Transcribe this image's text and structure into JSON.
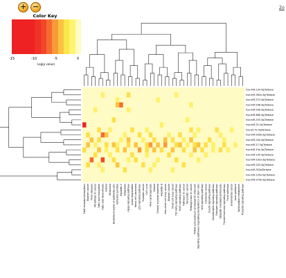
{
  "toolbar": {
    "zoom_in_icon": "zoom-in-icon",
    "zoom_out_icon": "zoom-out-icon",
    "zoom_in_glyph": "+",
    "zoom_out_glyph": "−"
  },
  "corner_link": "Zo",
  "color_key": {
    "title": "Color Key",
    "ticks": [
      "-15",
      "-10",
      "-5",
      "0"
    ],
    "axis_label": "Log(p value)",
    "colors": [
      "#ee2222",
      "#ee2222",
      "#ee2222",
      "#ee2222",
      "#f13026",
      "#f3452a",
      "#f66b30",
      "#f99a38",
      "#fbc440",
      "#fde64c",
      "#fff46e",
      "#fffbc4"
    ]
  },
  "heatmap": {
    "background": "#fffbc4",
    "rows": [
      "hsa-miR-134-5p|Tarbase",
      "hsa-miR-361b-3p|Tarbase",
      "hsa-miR-574-3p|Tarbase",
      "hsa-miR-296-5p|Tarbase",
      "hsa-miR-590-5p|Tarbase",
      "hsa-miR-660-5p|Tarbase",
      "hsa-miR-335-5p|Tarbase",
      "hsa-miR-32-5p|Tarbase",
      "hsa-let-7a-5p|Tarbase",
      "hsa-miR-200b-3p|Tarbase",
      "hsa-miR-20a-5p|Tarbase",
      "hsa-miR-17-5p|Tarbase",
      "hsa-miR-19a-3p|Tarbase",
      "hsa-miR-195-5p|Tarbase",
      "hsa-miR-101b-3p|Tarbase",
      "hsa-miR-203-5p|Tarbase",
      "hsa-miR-320a|Tarbase",
      "hsa-miR-135a-5p|Tarbase",
      "hsa-miR-374b-5p|Tarbase"
    ],
    "columns": [
      "ErbB receptor interactions",
      "Bladder cancer",
      "Prion diseases",
      "MicroRNAs in cancer",
      "Fatty acid elongation",
      "Fatty acid biosynthesis",
      "Glioma",
      "Melanoma",
      "Bacterial invasion of epithelial cells",
      "Adherens junction",
      "Hepatitis C",
      "Shigellosis",
      "Hippo signaling pathway",
      "Lysine degradation",
      "Renal cell carcinoma",
      "p53 signaling pathway",
      "Prostate cancer",
      "Cell cycle",
      "Viral carcinogenesis",
      "Glioma",
      "Chronic myeloid leukemia",
      "Hepatitis B",
      "Non-small cell lung cancer",
      "Bladder cancer",
      "Small cell lung cancer",
      "TGF-beta signaling pathway",
      "FoxO signaling pathway",
      "Pathways in cancer",
      "Pancreatic cancer",
      "Proteoglycans in cancer",
      "Protein processing in endoplasmic reticulum",
      "Signaling pathways regulating pluripotency of stem cells",
      "Wnt signaling pathway",
      "Colorectal cancer",
      "Insulin signaling pathway",
      "Neurotrophin signaling pathway",
      "Estrogen signaling pathway",
      "Ubiquitin mediated proteolysis",
      "Thyroid hormone signaling pathway",
      "Focal adhesion",
      "Endometrial cancer",
      "Axon guidance",
      "Sphingolipid metabolism",
      "Prolactin signaling pathway"
    ],
    "cells": [
      [
        1,
        5,
        1
      ],
      [
        1,
        12,
        2
      ],
      [
        1,
        25,
        1
      ],
      [
        2,
        9,
        1
      ],
      [
        2,
        20,
        1
      ],
      [
        3,
        9,
        3
      ],
      [
        3,
        10,
        5
      ],
      [
        3,
        29,
        1
      ],
      [
        4,
        3,
        1
      ],
      [
        4,
        12,
        1
      ],
      [
        6,
        8,
        2
      ],
      [
        6,
        28,
        1
      ],
      [
        7,
        0,
        7
      ],
      [
        7,
        21,
        1
      ],
      [
        8,
        4,
        2
      ],
      [
        8,
        7,
        1
      ],
      [
        8,
        13,
        2
      ],
      [
        8,
        17,
        1
      ],
      [
        8,
        29,
        2
      ],
      [
        8,
        31,
        1
      ],
      [
        8,
        36,
        2
      ],
      [
        8,
        40,
        1
      ],
      [
        9,
        1,
        2
      ],
      [
        9,
        5,
        5
      ],
      [
        9,
        6,
        3
      ],
      [
        9,
        11,
        1
      ],
      [
        9,
        15,
        2
      ],
      [
        9,
        18,
        2
      ],
      [
        9,
        23,
        1
      ],
      [
        9,
        26,
        2
      ],
      [
        9,
        30,
        1
      ],
      [
        9,
        37,
        1
      ],
      [
        10,
        2,
        3
      ],
      [
        10,
        4,
        2
      ],
      [
        10,
        10,
        1
      ],
      [
        10,
        12,
        3
      ],
      [
        10,
        16,
        1
      ],
      [
        10,
        19,
        2
      ],
      [
        10,
        22,
        3
      ],
      [
        10,
        24,
        2
      ],
      [
        10,
        27,
        1
      ],
      [
        10,
        29,
        3
      ],
      [
        10,
        34,
        2
      ],
      [
        10,
        38,
        1
      ],
      [
        11,
        1,
        3
      ],
      [
        11,
        3,
        1
      ],
      [
        11,
        6,
        2
      ],
      [
        11,
        8,
        3
      ],
      [
        11,
        9,
        1
      ],
      [
        11,
        12,
        2
      ],
      [
        11,
        14,
        3
      ],
      [
        11,
        17,
        2
      ],
      [
        11,
        18,
        4
      ],
      [
        11,
        20,
        3
      ],
      [
        11,
        22,
        4
      ],
      [
        11,
        25,
        2
      ],
      [
        11,
        26,
        3
      ],
      [
        11,
        28,
        1
      ],
      [
        11,
        30,
        2
      ],
      [
        11,
        31,
        3
      ],
      [
        11,
        33,
        2
      ],
      [
        11,
        35,
        1
      ],
      [
        11,
        38,
        2
      ],
      [
        11,
        41,
        1
      ],
      [
        12,
        0,
        2
      ],
      [
        12,
        4,
        3
      ],
      [
        12,
        6,
        1
      ],
      [
        12,
        9,
        2
      ],
      [
        12,
        11,
        3
      ],
      [
        12,
        15,
        4
      ],
      [
        12,
        17,
        2
      ],
      [
        12,
        19,
        3
      ],
      [
        12,
        21,
        2
      ],
      [
        12,
        24,
        3
      ],
      [
        12,
        27,
        2
      ],
      [
        12,
        30,
        3
      ],
      [
        12,
        32,
        2
      ],
      [
        12,
        35,
        1
      ],
      [
        12,
        37,
        2
      ],
      [
        12,
        39,
        1
      ],
      [
        13,
        3,
        2
      ],
      [
        13,
        7,
        1
      ],
      [
        13,
        13,
        2
      ],
      [
        13,
        17,
        1
      ],
      [
        13,
        23,
        2
      ],
      [
        13,
        29,
        1
      ],
      [
        13,
        33,
        1
      ],
      [
        14,
        2,
        5
      ],
      [
        14,
        5,
        6
      ],
      [
        14,
        8,
        2
      ],
      [
        14,
        12,
        1
      ],
      [
        14,
        14,
        2
      ],
      [
        14,
        20,
        1
      ],
      [
        14,
        25,
        2
      ],
      [
        14,
        31,
        1
      ],
      [
        15,
        1,
        2
      ],
      [
        15,
        4,
        1
      ],
      [
        15,
        9,
        3
      ],
      [
        15,
        16,
        2
      ],
      [
        15,
        19,
        1
      ],
      [
        15,
        27,
        2
      ],
      [
        16,
        5,
        1
      ],
      [
        16,
        11,
        2
      ],
      [
        16,
        18,
        1
      ],
      [
        16,
        24,
        1
      ]
    ]
  }
}
